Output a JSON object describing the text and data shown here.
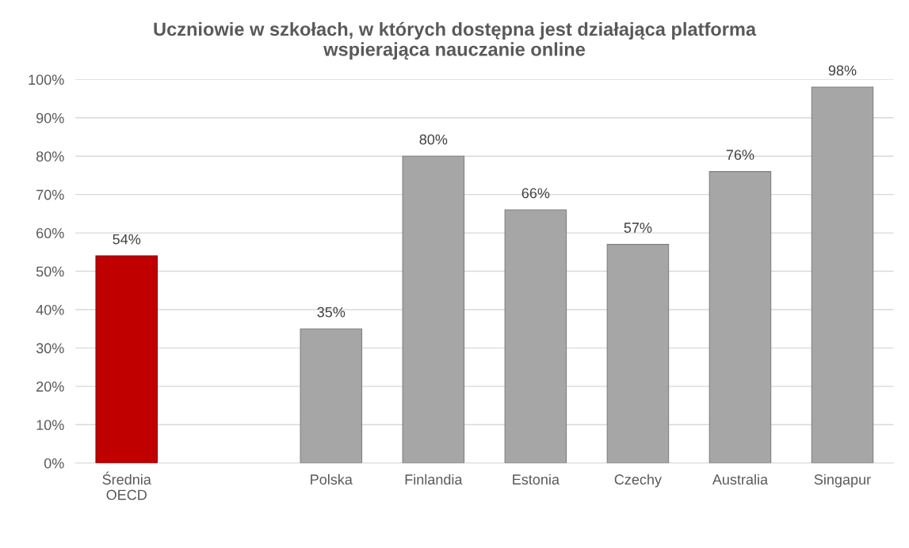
{
  "chart_data": {
    "type": "bar",
    "title": "Uczniowie w szkołach, w których dostępna jest działająca platforma\nwspierająca nauczanie online",
    "categories": [
      "Średnia\nOECD",
      null,
      "Polska",
      "Finlandia",
      "Estonia",
      "Czechy",
      "Australia",
      "Singapur"
    ],
    "values": [
      54,
      null,
      35,
      80,
      66,
      57,
      76,
      98
    ],
    "colors": [
      "#c00000",
      null,
      "#a6a6a6",
      "#a6a6a6",
      "#a6a6a6",
      "#a6a6a6",
      "#a6a6a6",
      "#a6a6a6"
    ],
    "value_labels": [
      "54%",
      null,
      "35%",
      "80%",
      "66%",
      "57%",
      "76%",
      "98%"
    ],
    "ylim": [
      0,
      100
    ],
    "yticks": [
      {
        "value": 0,
        "label": "0%"
      },
      {
        "value": 10,
        "label": "10%"
      },
      {
        "value": 20,
        "label": "20%"
      },
      {
        "value": 30,
        "label": "30%"
      },
      {
        "value": 40,
        "label": "40%"
      },
      {
        "value": 50,
        "label": "50%"
      },
      {
        "value": 60,
        "label": "60%"
      },
      {
        "value": 70,
        "label": "70%"
      },
      {
        "value": 80,
        "label": "80%"
      },
      {
        "value": 90,
        "label": "90%"
      },
      {
        "value": 100,
        "label": "100%"
      }
    ],
    "grid": "y"
  }
}
